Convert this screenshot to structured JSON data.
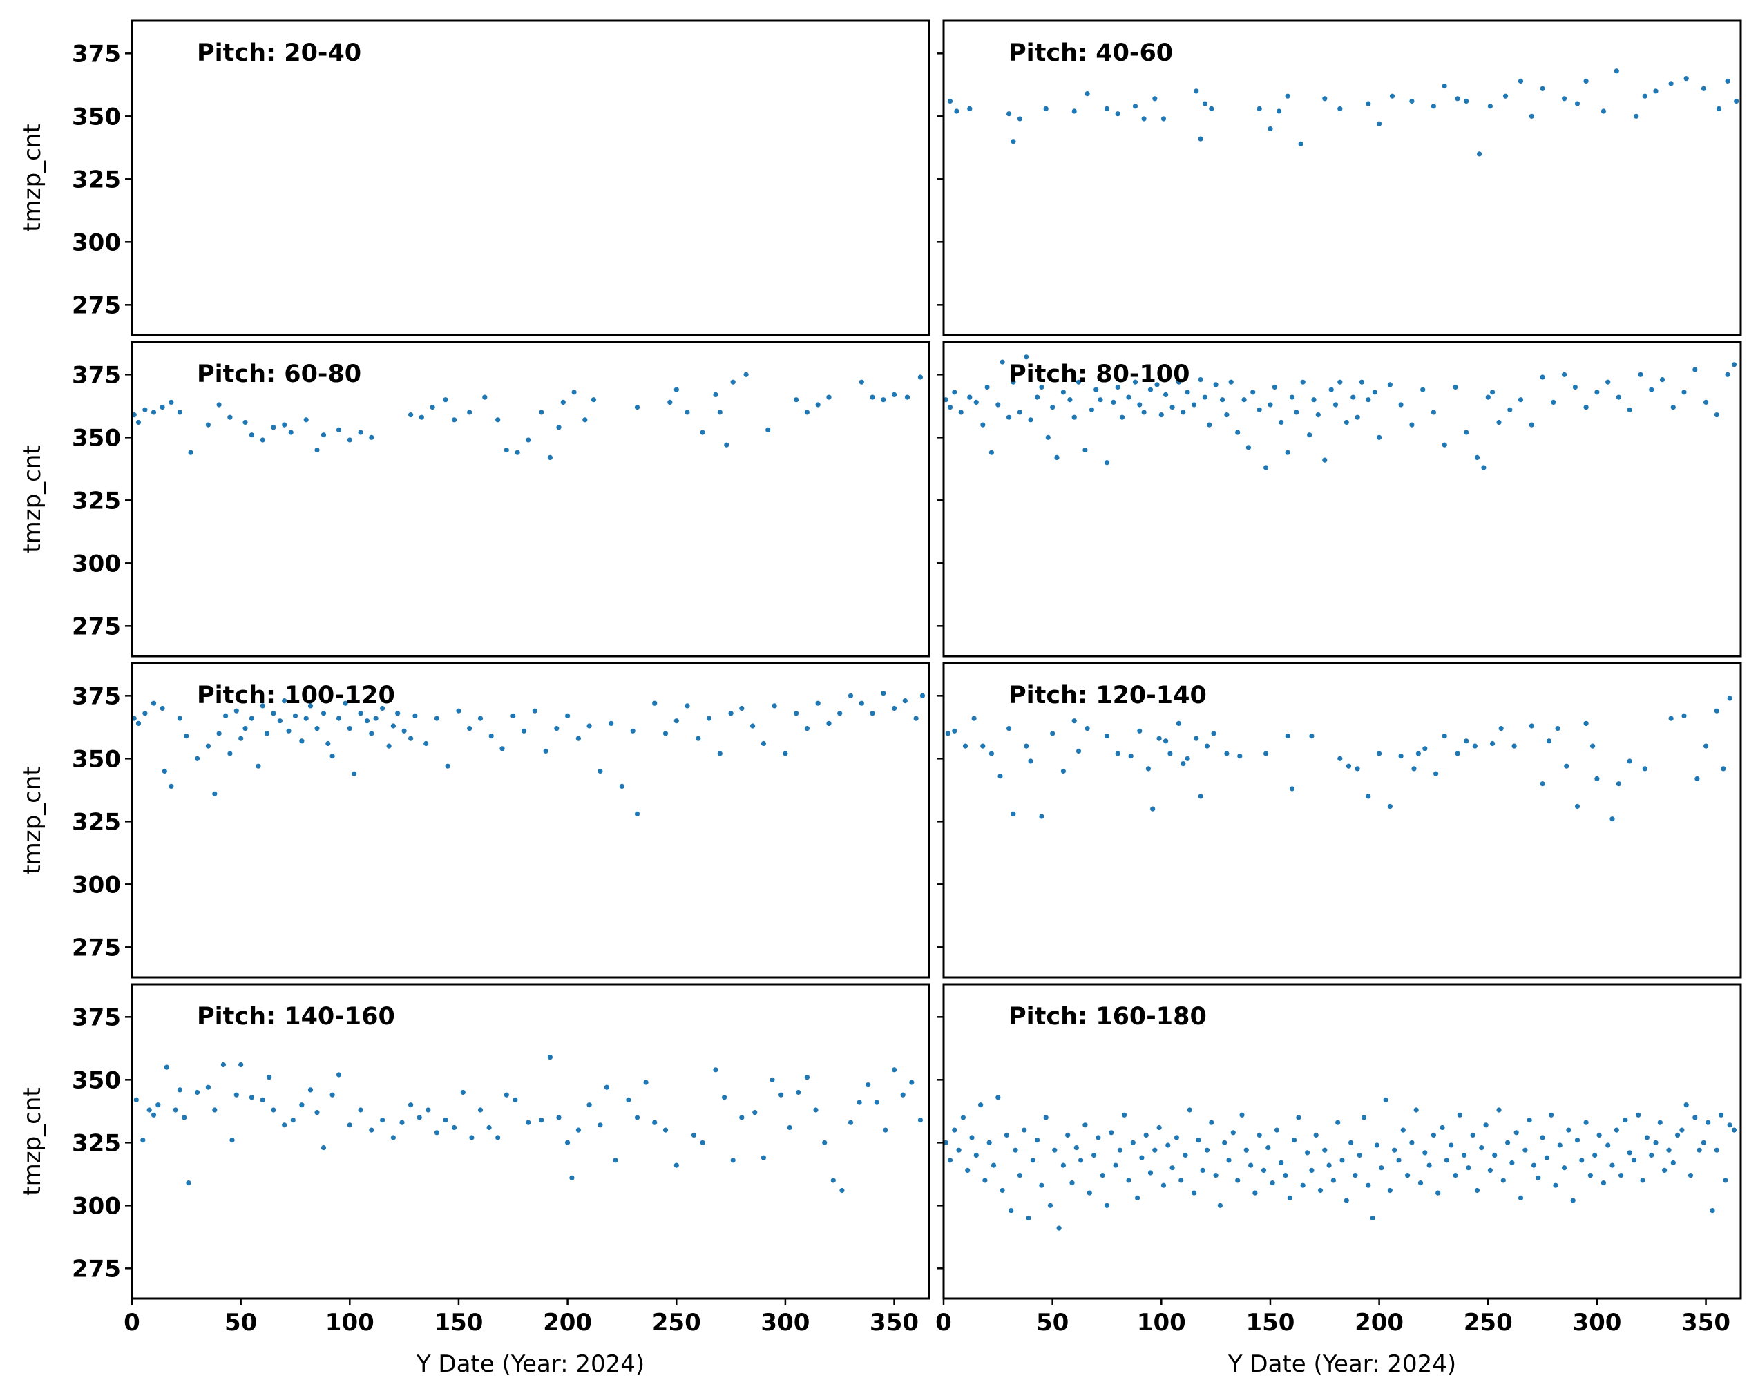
{
  "figure": {
    "ylabel": "tmzp_cnt",
    "xlabel": "Y Date (Year: 2024)",
    "xticks": [
      0,
      50,
      100,
      150,
      200,
      250,
      300,
      350
    ],
    "yticks": [
      275,
      300,
      325,
      350,
      375
    ],
    "xlim": [
      0,
      366
    ],
    "ylim": [
      263,
      388
    ],
    "point_color": "#1f77b4"
  },
  "chart_data": [
    {
      "type": "scatter",
      "title": "Pitch: 20-40",
      "x": [],
      "y": []
    },
    {
      "type": "scatter",
      "title": "Pitch: 40-60",
      "x": [
        3,
        6,
        12,
        30,
        32,
        35,
        47,
        60,
        66,
        75,
        80,
        88,
        92,
        97,
        101,
        116,
        118,
        120,
        123,
        145,
        150,
        154,
        158,
        164,
        175,
        182,
        195,
        200,
        206,
        215,
        225,
        230,
        236,
        240,
        246,
        251,
        258,
        265,
        270,
        275,
        285,
        291,
        295,
        303,
        309,
        318,
        322,
        327,
        334,
        341,
        349,
        356,
        360,
        364
      ],
      "y": [
        356,
        352,
        353,
        351,
        340,
        349,
        353,
        352,
        359,
        353,
        351,
        354,
        349,
        357,
        349,
        360,
        341,
        355,
        353,
        353,
        345,
        352,
        358,
        339,
        357,
        353,
        355,
        347,
        358,
        356,
        354,
        362,
        357,
        356,
        335,
        354,
        358,
        364,
        350,
        361,
        357,
        355,
        364,
        352,
        368,
        350,
        358,
        360,
        363,
        365,
        361,
        353,
        364,
        356
      ]
    },
    {
      "type": "scatter",
      "title": "Pitch: 60-80",
      "x": [
        1,
        3,
        6,
        10,
        14,
        18,
        22,
        27,
        35,
        40,
        45,
        52,
        55,
        60,
        65,
        70,
        73,
        80,
        85,
        88,
        95,
        100,
        105,
        110,
        128,
        133,
        138,
        144,
        148,
        155,
        162,
        168,
        172,
        177,
        182,
        188,
        192,
        196,
        198,
        203,
        208,
        212,
        232,
        247,
        250,
        255,
        262,
        268,
        270,
        273,
        276,
        282,
        292,
        305,
        310,
        315,
        320,
        335,
        340,
        345,
        350,
        356,
        362
      ],
      "y": [
        359,
        356,
        361,
        360,
        362,
        364,
        360,
        344,
        355,
        363,
        358,
        356,
        351,
        349,
        354,
        355,
        352,
        357,
        345,
        351,
        353,
        349,
        352,
        350,
        359,
        358,
        362,
        365,
        357,
        360,
        366,
        357,
        345,
        344,
        349,
        360,
        342,
        354,
        364,
        368,
        357,
        365,
        362,
        364,
        369,
        360,
        352,
        367,
        360,
        347,
        372,
        375,
        353,
        365,
        360,
        363,
        366,
        372,
        366,
        365,
        367,
        366,
        374
      ]
    },
    {
      "type": "scatter",
      "title": "Pitch: 80-100",
      "x": [
        1,
        3,
        5,
        8,
        12,
        15,
        18,
        20,
        22,
        25,
        27,
        30,
        32,
        35,
        38,
        40,
        43,
        45,
        48,
        50,
        52,
        55,
        58,
        60,
        62,
        65,
        68,
        70,
        72,
        75,
        78,
        80,
        82,
        85,
        88,
        90,
        92,
        95,
        98,
        100,
        102,
        105,
        108,
        110,
        112,
        115,
        118,
        120,
        122,
        125,
        128,
        130,
        132,
        135,
        138,
        140,
        142,
        145,
        148,
        150,
        152,
        155,
        158,
        160,
        162,
        165,
        168,
        170,
        172,
        175,
        178,
        180,
        182,
        185,
        188,
        190,
        192,
        195,
        198,
        200,
        205,
        210,
        215,
        220,
        225,
        230,
        235,
        240,
        245,
        248,
        250,
        252,
        255,
        260,
        265,
        270,
        275,
        280,
        285,
        290,
        295,
        300,
        305,
        310,
        315,
        320,
        325,
        330,
        335,
        340,
        345,
        350,
        355,
        360,
        363
      ],
      "y": [
        365,
        362,
        368,
        360,
        366,
        364,
        355,
        370,
        344,
        363,
        380,
        358,
        372,
        360,
        382,
        357,
        366,
        370,
        350,
        362,
        342,
        368,
        365,
        358,
        372,
        345,
        361,
        369,
        365,
        340,
        364,
        370,
        358,
        366,
        372,
        363,
        360,
        369,
        371,
        359,
        367,
        362,
        372,
        360,
        368,
        363,
        373,
        366,
        355,
        371,
        365,
        359,
        372,
        352,
        365,
        346,
        368,
        361,
        338,
        363,
        370,
        356,
        344,
        366,
        360,
        372,
        351,
        365,
        359,
        341,
        369,
        363,
        372,
        356,
        366,
        358,
        372,
        365,
        368,
        350,
        371,
        363,
        355,
        369,
        360,
        347,
        370,
        352,
        342,
        338,
        366,
        368,
        356,
        361,
        365,
        355,
        374,
        364,
        375,
        370,
        362,
        368,
        372,
        366,
        361,
        375,
        369,
        373,
        362,
        368,
        377,
        364,
        359,
        375,
        379
      ]
    },
    {
      "type": "scatter",
      "title": "Pitch: 100-120",
      "x": [
        1,
        3,
        6,
        10,
        14,
        15,
        18,
        22,
        25,
        30,
        35,
        38,
        40,
        43,
        45,
        48,
        50,
        52,
        55,
        58,
        60,
        62,
        65,
        68,
        70,
        72,
        75,
        78,
        80,
        82,
        85,
        88,
        90,
        92,
        95,
        98,
        100,
        102,
        105,
        108,
        110,
        112,
        115,
        118,
        120,
        122,
        125,
        128,
        130,
        135,
        140,
        145,
        150,
        155,
        160,
        165,
        170,
        175,
        180,
        185,
        190,
        195,
        200,
        205,
        210,
        215,
        220,
        225,
        230,
        232,
        240,
        245,
        250,
        255,
        260,
        265,
        270,
        275,
        280,
        285,
        290,
        295,
        300,
        305,
        310,
        315,
        320,
        325,
        330,
        335,
        340,
        345,
        350,
        355,
        360,
        363
      ],
      "y": [
        366,
        364,
        368,
        372,
        370,
        345,
        339,
        366,
        359,
        350,
        355,
        336,
        360,
        367,
        352,
        369,
        358,
        362,
        366,
        347,
        371,
        360,
        368,
        365,
        373,
        361,
        367,
        357,
        366,
        371,
        362,
        368,
        356,
        351,
        366,
        372,
        362,
        344,
        368,
        365,
        360,
        366,
        370,
        355,
        363,
        368,
        361,
        358,
        367,
        356,
        366,
        347,
        369,
        362,
        366,
        359,
        354,
        367,
        361,
        369,
        353,
        362,
        367,
        358,
        363,
        345,
        364,
        339,
        361,
        328,
        372,
        360,
        365,
        371,
        358,
        366,
        352,
        368,
        370,
        363,
        356,
        371,
        352,
        368,
        362,
        372,
        364,
        368,
        375,
        372,
        368,
        376,
        370,
        373,
        366,
        375
      ]
    },
    {
      "type": "scatter",
      "title": "Pitch: 120-140",
      "x": [
        2,
        5,
        10,
        14,
        18,
        22,
        26,
        30,
        32,
        38,
        40,
        45,
        50,
        55,
        60,
        62,
        66,
        75,
        80,
        86,
        90,
        94,
        96,
        99,
        102,
        104,
        108,
        110,
        112,
        116,
        118,
        121,
        124,
        130,
        136,
        148,
        158,
        160,
        169,
        182,
        186,
        190,
        195,
        200,
        205,
        210,
        216,
        218,
        221,
        226,
        230,
        236,
        240,
        244,
        252,
        256,
        262,
        270,
        275,
        278,
        282,
        286,
        291,
        295,
        298,
        300,
        307,
        310,
        315,
        322,
        334,
        340,
        346,
        350,
        355,
        358,
        361
      ],
      "y": [
        360,
        361,
        355,
        366,
        355,
        352,
        343,
        362,
        328,
        355,
        349,
        327,
        360,
        345,
        365,
        353,
        362,
        359,
        352,
        351,
        361,
        346,
        330,
        358,
        357,
        352,
        364,
        348,
        350,
        358,
        335,
        355,
        360,
        352,
        351,
        352,
        359,
        338,
        359,
        350,
        347,
        346,
        335,
        352,
        331,
        351,
        346,
        352,
        354,
        344,
        359,
        352,
        357,
        355,
        356,
        362,
        355,
        363,
        340,
        357,
        362,
        347,
        331,
        364,
        355,
        342,
        326,
        340,
        349,
        346,
        366,
        367,
        342,
        355,
        369,
        346,
        374
      ]
    },
    {
      "type": "scatter",
      "title": "Pitch: 140-160",
      "x": [
        2,
        5,
        8,
        10,
        12,
        16,
        20,
        22,
        24,
        26,
        30,
        35,
        38,
        42,
        46,
        48,
        50,
        55,
        60,
        63,
        65,
        70,
        74,
        78,
        82,
        85,
        88,
        92,
        95,
        100,
        105,
        110,
        115,
        120,
        124,
        128,
        132,
        136,
        140,
        144,
        148,
        152,
        156,
        160,
        164,
        168,
        172,
        176,
        182,
        188,
        192,
        196,
        200,
        202,
        205,
        210,
        215,
        218,
        222,
        228,
        232,
        236,
        240,
        245,
        250,
        258,
        262,
        268,
        272,
        276,
        280,
        286,
        290,
        294,
        298,
        302,
        306,
        310,
        314,
        318,
        322,
        326,
        330,
        334,
        338,
        342,
        346,
        350,
        354,
        358,
        362
      ],
      "y": [
        342,
        326,
        338,
        336,
        340,
        355,
        338,
        346,
        335,
        309,
        345,
        347,
        338,
        356,
        326,
        344,
        356,
        343,
        342,
        351,
        338,
        332,
        334,
        340,
        346,
        337,
        323,
        344,
        352,
        332,
        338,
        330,
        334,
        327,
        333,
        340,
        335,
        338,
        329,
        334,
        331,
        345,
        327,
        338,
        331,
        327,
        344,
        342,
        333,
        334,
        359,
        335,
        325,
        311,
        330,
        340,
        332,
        347,
        318,
        342,
        335,
        349,
        333,
        330,
        316,
        328,
        325,
        354,
        343,
        318,
        335,
        337,
        319,
        350,
        344,
        331,
        345,
        351,
        338,
        325,
        310,
        306,
        333,
        341,
        348,
        341,
        330,
        354,
        344,
        349,
        334
      ]
    },
    {
      "type": "scatter",
      "title": "Pitch: 160-180",
      "x": [
        1,
        3,
        5,
        7,
        9,
        11,
        13,
        15,
        17,
        19,
        21,
        23,
        25,
        27,
        29,
        31,
        33,
        35,
        37,
        39,
        41,
        43,
        45,
        47,
        49,
        51,
        53,
        55,
        57,
        59,
        61,
        63,
        65,
        67,
        69,
        71,
        73,
        75,
        77,
        79,
        81,
        83,
        85,
        87,
        89,
        91,
        93,
        95,
        97,
        99,
        101,
        103,
        105,
        107,
        109,
        111,
        113,
        115,
        117,
        119,
        121,
        123,
        125,
        127,
        129,
        131,
        133,
        135,
        137,
        139,
        141,
        143,
        145,
        147,
        149,
        151,
        153,
        155,
        157,
        159,
        161,
        163,
        165,
        167,
        169,
        171,
        173,
        175,
        177,
        179,
        181,
        183,
        185,
        187,
        189,
        191,
        193,
        195,
        197,
        199,
        201,
        203,
        205,
        207,
        209,
        211,
        213,
        215,
        217,
        219,
        221,
        223,
        225,
        227,
        229,
        231,
        233,
        235,
        237,
        239,
        241,
        243,
        245,
        247,
        249,
        251,
        253,
        255,
        257,
        259,
        261,
        263,
        265,
        267,
        269,
        271,
        273,
        275,
        277,
        279,
        281,
        283,
        285,
        287,
        289,
        291,
        293,
        295,
        297,
        299,
        301,
        303,
        305,
        307,
        309,
        311,
        313,
        315,
        317,
        319,
        321,
        323,
        325,
        327,
        329,
        331,
        333,
        335,
        337,
        339,
        341,
        343,
        345,
        347,
        349,
        351,
        353,
        355,
        357,
        359,
        361,
        363
      ],
      "y": [
        325,
        318,
        330,
        322,
        335,
        314,
        327,
        320,
        340,
        310,
        325,
        316,
        343,
        306,
        328,
        298,
        322,
        312,
        330,
        295,
        318,
        326,
        308,
        335,
        300,
        322,
        291,
        316,
        328,
        309,
        323,
        318,
        332,
        305,
        320,
        327,
        312,
        300,
        329,
        316,
        322,
        336,
        310,
        325,
        303,
        319,
        328,
        313,
        322,
        331,
        308,
        324,
        315,
        327,
        310,
        320,
        338,
        305,
        326,
        314,
        322,
        333,
        312,
        300,
        325,
        318,
        329,
        310,
        336,
        322,
        316,
        305,
        328,
        314,
        323,
        309,
        330,
        317,
        312,
        303,
        326,
        335,
        308,
        321,
        314,
        328,
        306,
        322,
        316,
        310,
        333,
        318,
        302,
        325,
        312,
        320,
        335,
        308,
        295,
        324,
        315,
        342,
        306,
        322,
        318,
        330,
        312,
        325,
        338,
        309,
        321,
        316,
        328,
        305,
        331,
        318,
        324,
        312,
        336,
        320,
        315,
        328,
        306,
        323,
        332,
        314,
        320,
        338,
        310,
        325,
        317,
        329,
        303,
        322,
        334,
        316,
        311,
        327,
        319,
        336,
        308,
        324,
        315,
        330,
        302,
        326,
        318,
        333,
        312,
        320,
        328,
        309,
        324,
        316,
        330,
        312,
        334,
        321,
        318,
        336,
        310,
        327,
        320,
        325,
        333,
        314,
        322,
        317,
        328,
        330,
        340,
        312,
        335,
        322,
        325,
        333,
        298,
        322,
        336,
        310,
        332,
        330
      ]
    }
  ]
}
